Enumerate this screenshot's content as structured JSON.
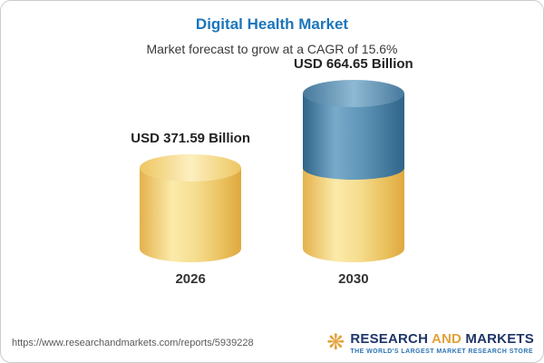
{
  "header": {
    "title": "Digital Health Market",
    "subtitle": "Market forecast to grow at a CAGR of 15.6%"
  },
  "chart_data": {
    "type": "bar",
    "title": "Digital Health Market",
    "subtitle": "Market forecast to grow at a CAGR of 15.6%",
    "categories": [
      "2026",
      "2030"
    ],
    "values": [
      371.59,
      664.65
    ],
    "value_labels": [
      "USD 371.59 Billion",
      "USD 664.65 Billion"
    ],
    "unit": "USD Billion",
    "cagr": "15.6%",
    "ylim": [
      0,
      700
    ],
    "grid": false,
    "legend_position": "none",
    "bar_style": "cylinder",
    "colors": {
      "bar_2026": "#F3D27A",
      "bar_2030_base": "#F3D27A",
      "bar_2030_growth": "#3C79A0"
    },
    "notes": "2030 bar is stacked: yellow base equals the 2026 value (371.59), blue top segment is the growth to 664.65"
  },
  "footer": {
    "url": "https://www.researchandmarkets.com/reports/5939228",
    "logo": {
      "word1": "RESEARCH",
      "word2": "AND",
      "word3": "MARKETS",
      "tagline": "THE WORLD'S LARGEST MARKET RESEARCH STORE"
    }
  },
  "colors": {
    "title_blue": "#1B75BC",
    "logo_navy": "#1F3668",
    "logo_gold": "#E2A23B",
    "tagline_blue": "#2E75B6"
  }
}
